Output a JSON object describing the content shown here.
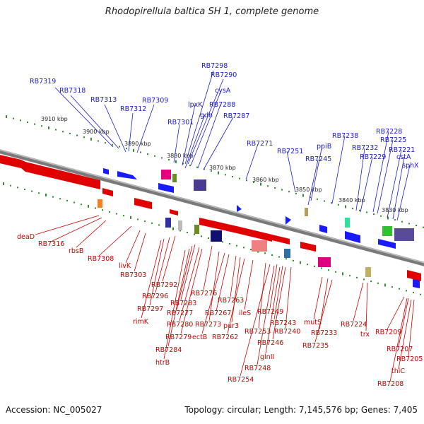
{
  "title": "Rhodopirellula baltica SH 1, complete genome",
  "footer": {
    "accession": "Accession: NC_005027",
    "summary": "Topology: circular; Length: 7,145,576 bp; Genes: 7,405"
  },
  "colors": {
    "forward_gene": "#1a1aff",
    "reverse_gene": "#e00000",
    "backbone": "#8a8a8a",
    "tick_dots": "#2e8b2e"
  },
  "kbp_labels": [
    "3910 kbp",
    "3900 kbp",
    "3890 kbp",
    "3880 kbp",
    "3870 kbp",
    "3860 kbp",
    "3850 kbp",
    "3840 kbp",
    "3830 kbp"
  ],
  "forward_labels": [
    "RB7319",
    "RB7318",
    "RB7313",
    "RB7312",
    "RB7309",
    "RB7298",
    "RB7290",
    "cysA",
    "lpxK",
    "RB7288",
    "gdh",
    "RB7287",
    "RB7301",
    "RB7271",
    "RB7251",
    "ppiB",
    "RB7245",
    "RB7238",
    "RB7232",
    "RB7229",
    "RB7228",
    "RB7225",
    "RB7221",
    "cstA",
    "sphX"
  ],
  "reverse_labels": [
    "deaD",
    "RB7316",
    "rbsB",
    "RB7308",
    "livK",
    "RB7303",
    "RB7292",
    "RB7296",
    "RB7297",
    "rimK",
    "RB7276",
    "RB7283",
    "RB7277",
    "RB7280",
    "RB7279",
    "RB7284",
    "htrB",
    "RB7273",
    "ectB",
    "RB7267",
    "RB7263",
    "pur3",
    "RB7262",
    "ileS",
    "RB7253",
    "RB7249",
    "RB7243",
    "RB7240",
    "RB7246",
    "glnII",
    "RB7248",
    "RB7254",
    "mutS",
    "RB7233",
    "RB7235",
    "RB7224",
    "trx",
    "RB7209",
    "RB7207",
    "RB7205",
    "thiC",
    "RB7208"
  ]
}
